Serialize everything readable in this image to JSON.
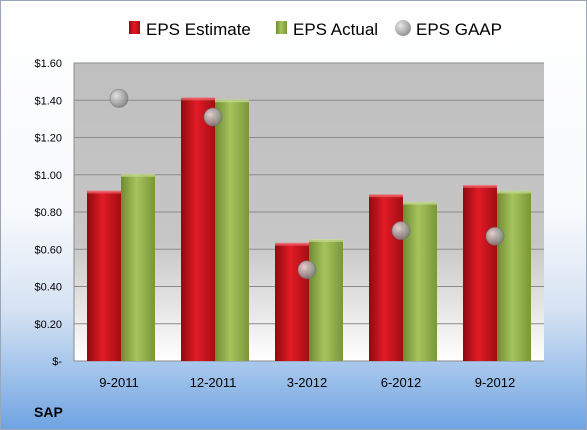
{
  "chart_data": {
    "type": "bar",
    "title": "",
    "xlabel": "",
    "ylabel": "",
    "categories": [
      "9-2011",
      "12-2011",
      "3-2012",
      "6-2012",
      "9-2012"
    ],
    "series": [
      {
        "name": "EPS Estimate",
        "kind": "bar",
        "color": "#c0141c",
        "values": [
          0.91,
          1.41,
          0.63,
          0.89,
          0.94
        ]
      },
      {
        "name": "EPS Actual",
        "kind": "bar",
        "color": "#8fb04a",
        "values": [
          1.0,
          1.4,
          0.65,
          0.85,
          0.91
        ]
      },
      {
        "name": "EPS GAAP",
        "kind": "marker",
        "color": "#b8b8b8",
        "values": [
          1.41,
          1.31,
          0.49,
          0.7,
          0.67
        ]
      }
    ],
    "ylim": [
      0,
      1.6
    ],
    "yticks": [
      0,
      0.2,
      0.4,
      0.6,
      0.8,
      1.0,
      1.2,
      1.4,
      1.6
    ],
    "ytick_labels": [
      "$-",
      "$0.20",
      "$0.40",
      "$0.60",
      "$0.80",
      "$1.00",
      "$1.20",
      "$1.40",
      "$1.60"
    ],
    "grid": true,
    "legend_position": "top"
  },
  "brand_label": "SAP"
}
